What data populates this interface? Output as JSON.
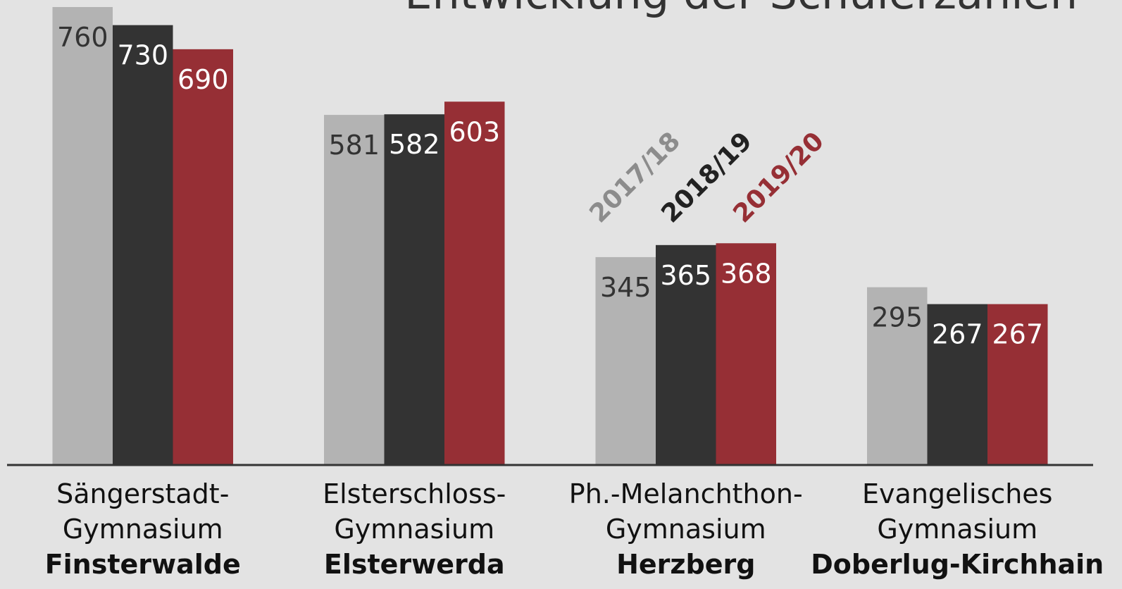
{
  "chart_data": {
    "type": "bar",
    "title": "Entwicklung der Schülerzahlen",
    "categories": [
      [
        "Sängerstadt-",
        "Gymnasium",
        "Finsterwalde"
      ],
      [
        "Elsterschloss-",
        "Gymnasium",
        "Elsterwerda"
      ],
      [
        "Ph.-Melanchthon-",
        "Gymnasium",
        "Herzberg"
      ],
      [
        "Evangelisches",
        "Gymnasium",
        "Doberlug-Kirchhain"
      ]
    ],
    "series": [
      {
        "name": "2017/18",
        "color": "#b3b3b3",
        "values": [
          760,
          581,
          345,
          295
        ]
      },
      {
        "name": "2018/19",
        "color": "#333333",
        "values": [
          730,
          582,
          365,
          267
        ]
      },
      {
        "name": "2019/20",
        "color": "#962f35",
        "values": [
          690,
          603,
          368,
          267
        ]
      }
    ],
    "ylim": [
      0,
      760
    ]
  }
}
